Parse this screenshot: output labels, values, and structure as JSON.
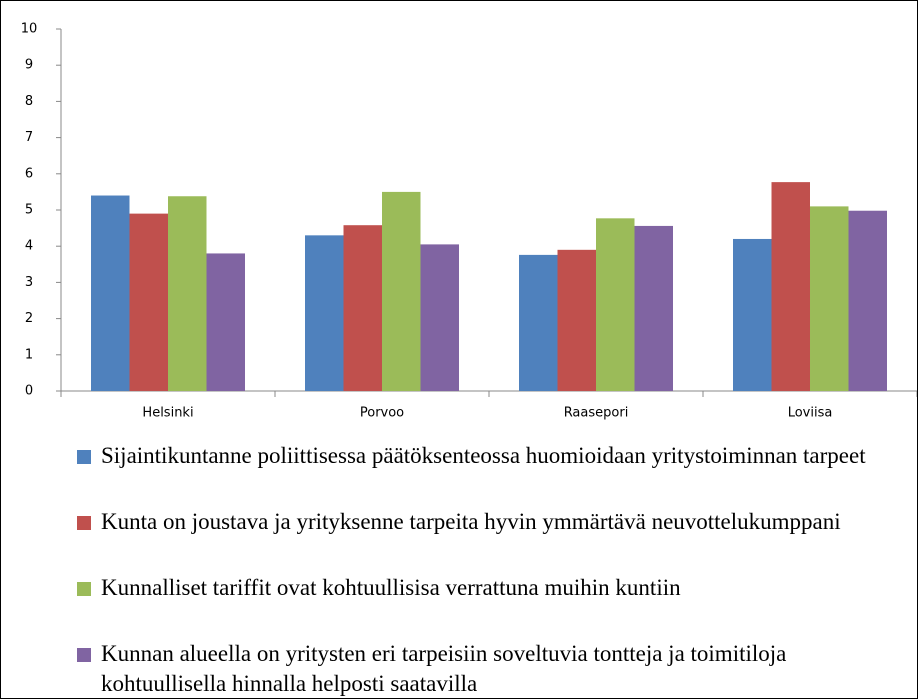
{
  "chart_data": {
    "type": "bar",
    "categories": [
      "Helsinki",
      "Porvoo",
      "Raasepori",
      "Loviisa"
    ],
    "series": [
      {
        "name": "Sijaintikuntanne poliittisessa päätöksenteossa huomioidaan yritystoiminnan tarpeet",
        "color": "#4f81bd",
        "values": [
          5.4,
          4.3,
          3.76,
          4.2
        ]
      },
      {
        "name": "Kunta on joustava ja yrityksenne tarpeita hyvin ymmärtävä neuvottelukumppani",
        "color": "#c0504d",
        "values": [
          4.9,
          4.58,
          3.9,
          5.77
        ]
      },
      {
        "name": "Kunnalliset tariffit ovat kohtuullisisa verrattuna muihin kuntiin",
        "color": "#9bbb59",
        "values": [
          5.38,
          5.5,
          4.77,
          5.1
        ]
      },
      {
        "name": "Kunnan alueella on yritysten eri tarpeisiin soveltuvia tontteja ja toimitiloja kohtuullisella hinnalla helposti saatavilla",
        "color": "#8064a2",
        "values": [
          3.8,
          4.05,
          4.56,
          4.98
        ]
      }
    ],
    "ylim": [
      0,
      10
    ],
    "yticks": [
      0,
      1,
      2,
      3,
      4,
      5,
      6,
      7,
      8,
      9,
      10
    ],
    "grid": false,
    "legend": "bottom"
  }
}
